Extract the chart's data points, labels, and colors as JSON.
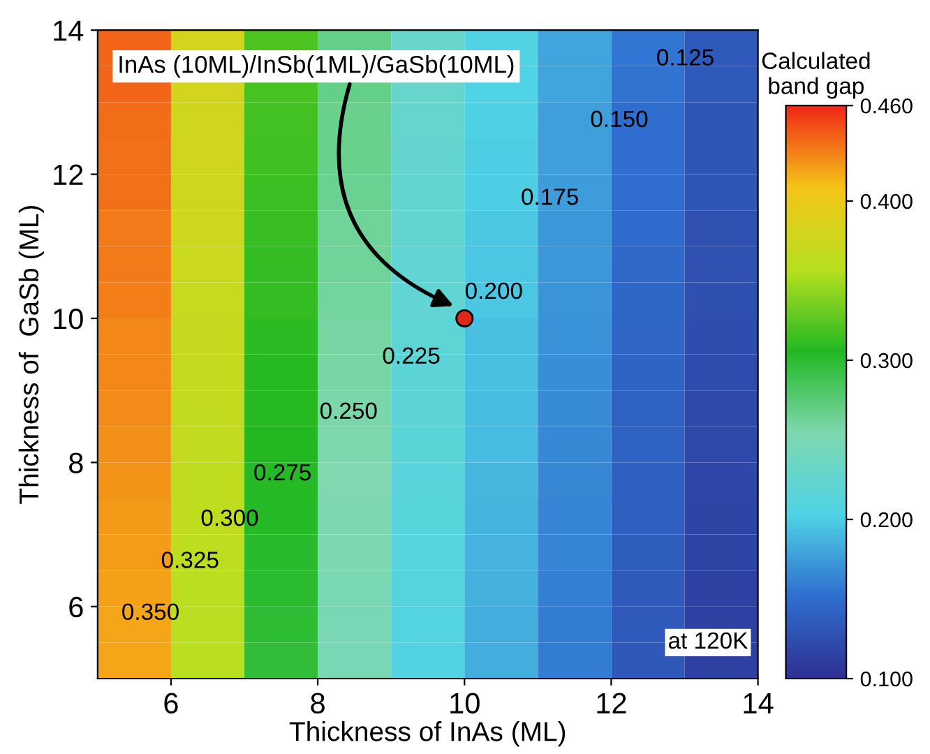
{
  "chart_data": {
    "type": "heatmap",
    "xlabel": "Thickness of InAs (ML)",
    "ylabel": "Thickness of  GaSb (ML)",
    "clabel": "Calculated\nband gap",
    "xlim": [
      5,
      14
    ],
    "xticks": [
      6,
      8,
      10,
      12,
      14
    ],
    "ylim": [
      5,
      14
    ],
    "yticks": [
      6,
      8,
      10,
      12,
      14
    ],
    "clim": [
      0.1,
      0.46
    ],
    "cticks": [
      {
        "value": 0.1,
        "label": "0.100"
      },
      {
        "value": 0.2,
        "label": "0.200"
      },
      {
        "value": 0.3,
        "label": "0.300"
      },
      {
        "value": 0.4,
        "label": "0.400"
      },
      {
        "value": 0.46,
        "label": "0.460"
      }
    ],
    "colors": [
      "#2e3192",
      "#2f6fd0",
      "#4fd3e6",
      "#7fd8b0",
      "#22b822",
      "#b8e020",
      "#f5c518",
      "#f02818"
    ],
    "cells": [
      [
        0.44,
        0.38,
        0.32,
        0.27,
        0.23,
        0.205,
        0.18,
        0.155,
        0.135
      ],
      [
        0.439,
        0.379,
        0.319,
        0.269,
        0.229,
        0.204,
        0.179,
        0.154,
        0.134
      ],
      [
        0.437,
        0.377,
        0.317,
        0.267,
        0.227,
        0.202,
        0.177,
        0.152,
        0.132
      ],
      [
        0.436,
        0.376,
        0.316,
        0.266,
        0.226,
        0.201,
        0.176,
        0.151,
        0.131
      ],
      [
        0.435,
        0.375,
        0.315,
        0.265,
        0.225,
        0.2,
        0.175,
        0.15,
        0.13
      ],
      [
        0.433,
        0.373,
        0.313,
        0.263,
        0.223,
        0.198,
        0.173,
        0.148,
        0.128
      ],
      [
        0.432,
        0.372,
        0.312,
        0.262,
        0.222,
        0.197,
        0.172,
        0.147,
        0.127
      ],
      [
        0.431,
        0.371,
        0.311,
        0.261,
        0.221,
        0.196,
        0.171,
        0.146,
        0.126
      ],
      [
        0.429,
        0.369,
        0.309,
        0.259,
        0.219,
        0.194,
        0.169,
        0.144,
        0.124
      ],
      [
        0.428,
        0.368,
        0.308,
        0.258,
        0.218,
        0.193,
        0.168,
        0.143,
        0.123
      ],
      [
        0.427,
        0.367,
        0.307,
        0.257,
        0.217,
        0.192,
        0.167,
        0.142,
        0.122
      ],
      [
        0.426,
        0.366,
        0.306,
        0.256,
        0.216,
        0.191,
        0.166,
        0.141,
        0.121
      ],
      [
        0.424,
        0.364,
        0.304,
        0.254,
        0.214,
        0.189,
        0.164,
        0.139,
        0.119
      ],
      [
        0.423,
        0.363,
        0.303,
        0.253,
        0.213,
        0.188,
        0.163,
        0.138,
        0.118
      ],
      [
        0.422,
        0.362,
        0.302,
        0.252,
        0.212,
        0.187,
        0.162,
        0.137,
        0.117
      ],
      [
        0.42,
        0.36,
        0.3,
        0.25,
        0.21,
        0.185,
        0.16,
        0.135,
        0.115
      ],
      [
        0.419,
        0.359,
        0.299,
        0.249,
        0.209,
        0.184,
        0.159,
        0.134,
        0.114
      ],
      [
        0.418,
        0.358,
        0.298,
        0.248,
        0.208,
        0.183,
        0.158,
        0.133,
        0.113
      ]
    ],
    "series": [
      {
        "type": "scatter",
        "x": [
          10
        ],
        "values": [
          10
        ],
        "color": "#e02818"
      }
    ],
    "annotations": [
      "InAs (10ML)/InSb(1ML)/GaSb(10ML)",
      "at 120K",
      "0.350",
      "0.325",
      "0.300",
      "0.275",
      "0.250",
      "0.225",
      "0.200",
      "0.175",
      "0.150",
      "0.125"
    ],
    "grid": false,
    "legend": false
  }
}
